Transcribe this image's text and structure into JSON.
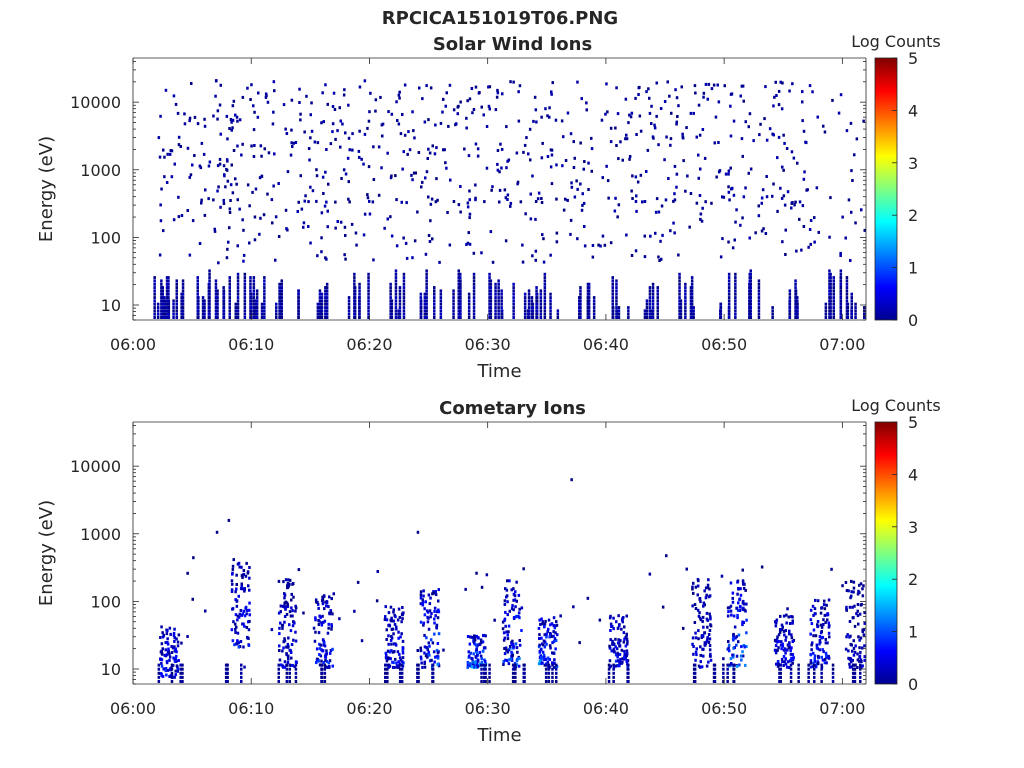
{
  "figure_title": "RPCICA151019T06.PNG",
  "chart_data": [
    {
      "type": "heatmap",
      "title": "Solar Wind Ions",
      "xlabel": "Time",
      "ylabel": "Energy (eV)",
      "x_ticks": [
        "06:00",
        "06:10",
        "06:20",
        "06:30",
        "06:40",
        "06:50",
        "07:00"
      ],
      "xlim": [
        "06:00",
        "07:02"
      ],
      "y_scale": "log",
      "y_ticks": [
        "10",
        "100",
        "1000",
        "10000"
      ],
      "ylim": [
        6,
        45000
      ],
      "colorbar": {
        "label": "Log Counts",
        "ticks": [
          "0",
          "1",
          "2",
          "3",
          "4",
          "5"
        ],
        "range": [
          0,
          5
        ],
        "colormap": "jet"
      },
      "description_distribution": "sparse single-count pixels across 06:02-07:02 at energies 10 eV to 30000 eV; denser streaks below 50 eV",
      "clusters": [
        {
          "t": "06:02",
          "e_lo": 300,
          "e_hi": 20000,
          "n": 90,
          "v": 0
        },
        {
          "t": "06:10",
          "e_lo": 300,
          "e_hi": 20000,
          "n": 110,
          "v": 0
        },
        {
          "t": "06:20",
          "e_lo": 300,
          "e_hi": 20000,
          "n": 110,
          "v": 0
        },
        {
          "t": "06:30",
          "e_lo": 300,
          "e_hi": 20000,
          "n": 110,
          "v": 0
        },
        {
          "t": "06:40",
          "e_lo": 300,
          "e_hi": 20000,
          "n": 110,
          "v": 0
        },
        {
          "t": "06:50",
          "e_lo": 300,
          "e_hi": 20000,
          "n": 110,
          "v": 0
        },
        {
          "t": "07:00",
          "e_lo": 300,
          "e_hi": 20000,
          "n": 40,
          "v": 0
        }
      ],
      "low_energy_streaks": [
        "06:02",
        "06:03",
        "06:05",
        "06:07",
        "06:09",
        "06:11",
        "06:13",
        "06:16",
        "06:19",
        "06:22",
        "06:25",
        "06:28",
        "06:31",
        "06:33",
        "06:35",
        "06:38",
        "06:41",
        "06:44",
        "06:47",
        "06:50",
        "06:53",
        "06:56",
        "06:59",
        "07:01"
      ]
    },
    {
      "type": "heatmap",
      "title": "Cometary Ions",
      "xlabel": "Time",
      "ylabel": "Energy (eV)",
      "x_ticks": [
        "06:00",
        "06:10",
        "06:20",
        "06:30",
        "06:40",
        "06:50",
        "07:00"
      ],
      "xlim": [
        "06:00",
        "07:02"
      ],
      "y_scale": "log",
      "y_ticks": [
        "10",
        "100",
        "1000",
        "10000"
      ],
      "ylim": [
        6,
        45000
      ],
      "colorbar": {
        "label": "Log Counts",
        "ticks": [
          "0",
          "1",
          "2",
          "3",
          "4",
          "5"
        ],
        "range": [
          0,
          5
        ],
        "colormap": "jet"
      },
      "bursts": [
        {
          "t": "06:03",
          "e_lo": 7,
          "e_hi": 40,
          "peak": 1.0
        },
        {
          "t": "06:09",
          "e_lo": 20,
          "e_hi": 400,
          "peak": 0.9
        },
        {
          "t": "06:13",
          "e_lo": 10,
          "e_hi": 200,
          "peak": 0.7
        },
        {
          "t": "06:16",
          "e_lo": 10,
          "e_hi": 120,
          "peak": 1.0
        },
        {
          "t": "06:22",
          "e_lo": 10,
          "e_hi": 80,
          "peak": 0.9
        },
        {
          "t": "06:25",
          "e_lo": 10,
          "e_hi": 150,
          "peak": 1.3
        },
        {
          "t": "06:29",
          "e_lo": 10,
          "e_hi": 30,
          "peak": 1.6
        },
        {
          "t": "06:32",
          "e_lo": 10,
          "e_hi": 200,
          "peak": 1.3
        },
        {
          "t": "06:35",
          "e_lo": 10,
          "e_hi": 60,
          "peak": 1.5
        },
        {
          "t": "06:41",
          "e_lo": 10,
          "e_hi": 60,
          "peak": 0.9
        },
        {
          "t": "06:48",
          "e_lo": 10,
          "e_hi": 200,
          "peak": 0.6
        },
        {
          "t": "06:51",
          "e_lo": 10,
          "e_hi": 200,
          "peak": 1.4
        },
        {
          "t": "06:55",
          "e_lo": 10,
          "e_hi": 60,
          "peak": 0.8
        },
        {
          "t": "06:58",
          "e_lo": 10,
          "e_hi": 100,
          "peak": 1.0
        },
        {
          "t": "07:01",
          "e_lo": 10,
          "e_hi": 200,
          "peak": 0.5
        }
      ],
      "isolated_points": [
        {
          "t": "06:08",
          "e": 1500
        },
        {
          "t": "06:07",
          "e": 1000
        },
        {
          "t": "06:24",
          "e": 1000
        },
        {
          "t": "06:37",
          "e": 6000
        },
        {
          "t": "06:45",
          "e": 450
        },
        {
          "t": "06:05",
          "e": 420
        }
      ]
    }
  ]
}
